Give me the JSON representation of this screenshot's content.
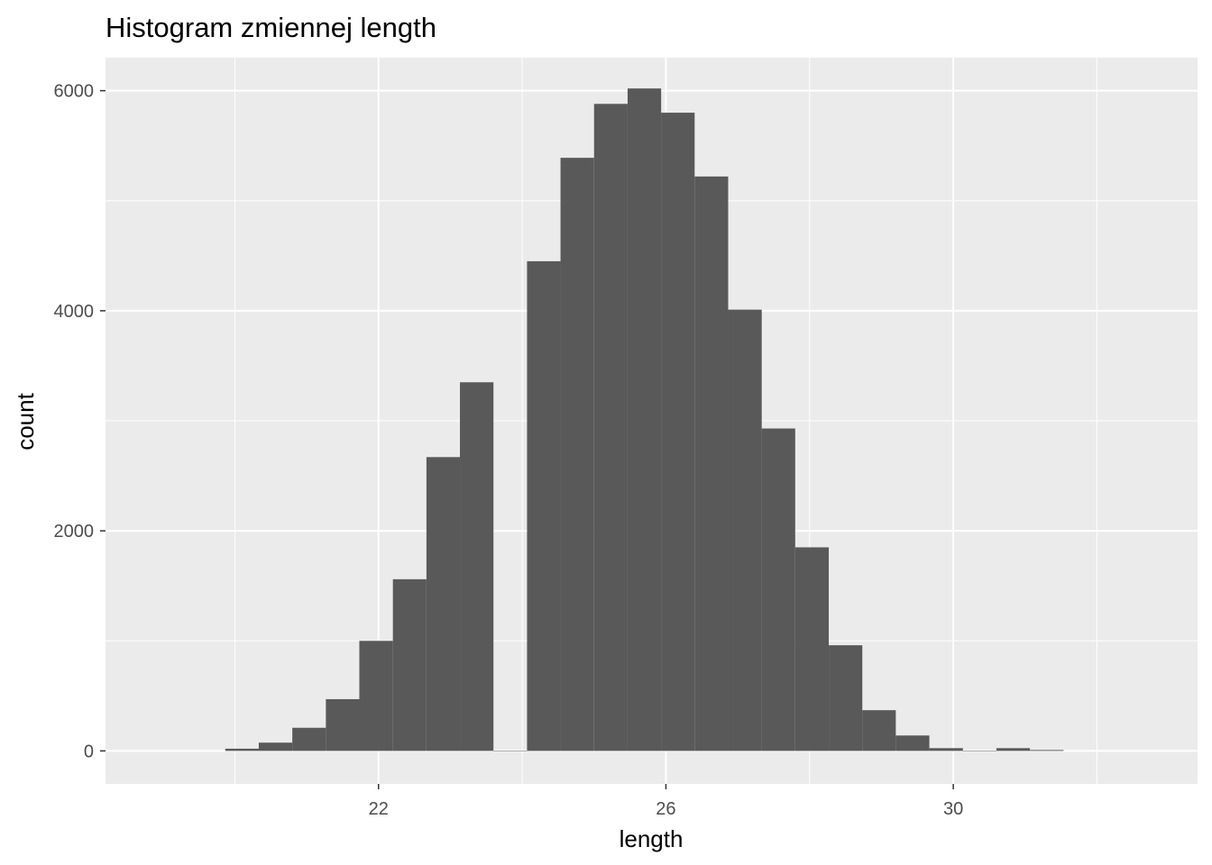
{
  "chart_data": {
    "type": "bar",
    "title": "Histogram zmiennej  length",
    "xlabel": "length",
    "ylabel": "count",
    "xlim": [
      18.2,
      33.4
    ],
    "ylim": [
      -300,
      6300
    ],
    "x_ticks": [
      22,
      26,
      30
    ],
    "y_ticks": [
      0,
      2000,
      4000,
      6000
    ],
    "x_minor_ticks": [
      20,
      24,
      28,
      32
    ],
    "y_minor_ticks": [
      1000,
      3000,
      5000
    ],
    "grid": true,
    "legend": "none",
    "bin_width": 0.4667,
    "bin_starts": [
      19.867,
      20.333,
      20.8,
      21.267,
      21.733,
      22.2,
      22.667,
      23.133,
      23.6,
      24.067,
      24.533,
      25.0,
      25.467,
      25.933,
      26.4,
      26.867,
      27.333,
      27.8,
      28.267,
      28.733,
      29.2,
      29.667,
      30.133,
      30.6,
      31.067
    ],
    "values": [
      20,
      75,
      210,
      470,
      1000,
      1560,
      2670,
      3350,
      0,
      4450,
      5390,
      5880,
      6020,
      5800,
      5220,
      4010,
      2930,
      1850,
      960,
      370,
      140,
      25,
      0,
      25,
      8
    ],
    "colors": {
      "panel": "#ebebeb",
      "grid_major": "#ffffff",
      "bar": "#595959",
      "tick_label": "#4d4d4d",
      "tick": "#333333"
    }
  }
}
